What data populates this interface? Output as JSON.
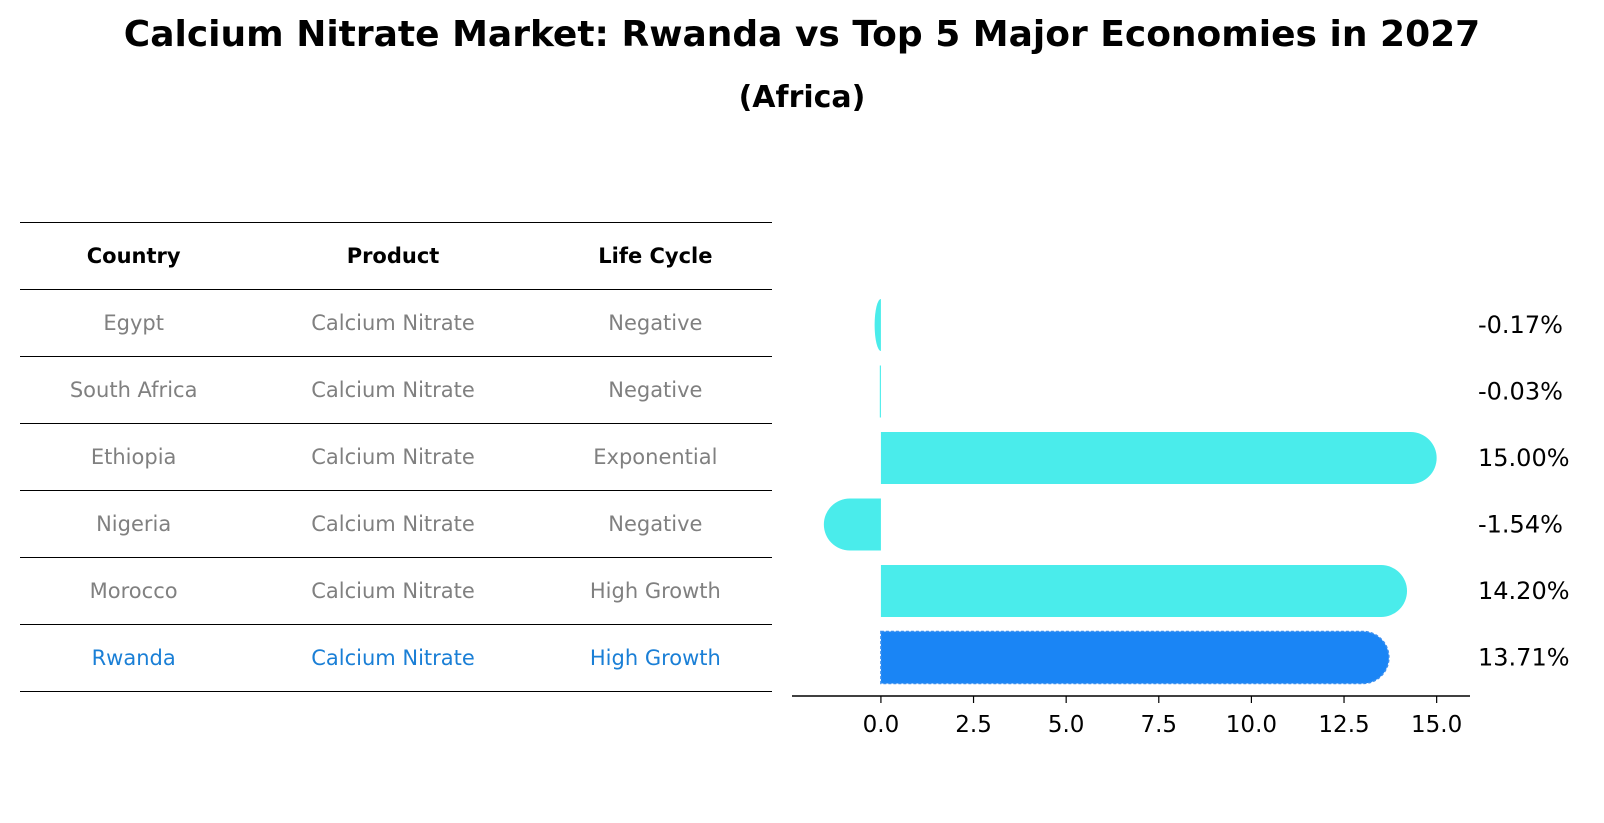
{
  "title": "Calcium Nitrate Market: Rwanda vs Top 5 Major Economies in 2027",
  "subtitle": "(Africa)",
  "table": {
    "headers": [
      "Country",
      "Product",
      "Life Cycle"
    ],
    "rows": [
      [
        "Egypt",
        "Calcium Nitrate",
        "Negative"
      ],
      [
        "South Africa",
        "Calcium Nitrate",
        "Negative"
      ],
      [
        "Ethiopia",
        "Calcium Nitrate",
        "Exponential"
      ],
      [
        "Nigeria",
        "Calcium Nitrate",
        "Negative"
      ],
      [
        "Morocco",
        "Calcium Nitrate",
        "High Growth"
      ],
      [
        "Rwanda",
        "Calcium Nitrate",
        "High Growth"
      ]
    ]
  },
  "chart_data": {
    "type": "bar",
    "orientation": "horizontal",
    "categories": [
      "Egypt",
      "South Africa",
      "Ethiopia",
      "Nigeria",
      "Morocco",
      "Rwanda"
    ],
    "values": [
      -0.17,
      -0.03,
      15.0,
      -1.54,
      14.2,
      13.71
    ],
    "data_labels": [
      "-0.17%",
      "-0.03%",
      "15.00%",
      "-1.54%",
      "14.20%",
      "13.71%"
    ],
    "xticks": [
      "0.0",
      "2.5",
      "5.0",
      "7.5",
      "10.0",
      "12.5",
      "15.0"
    ],
    "xtick_values": [
      0,
      2.5,
      5,
      7.5,
      10,
      12.5,
      15
    ],
    "xlim": [
      -2.4,
      15.9
    ],
    "highlight": "Rwanda",
    "colors": {
      "default": "#4aeceb",
      "highlight": "#1a85f5"
    }
  }
}
